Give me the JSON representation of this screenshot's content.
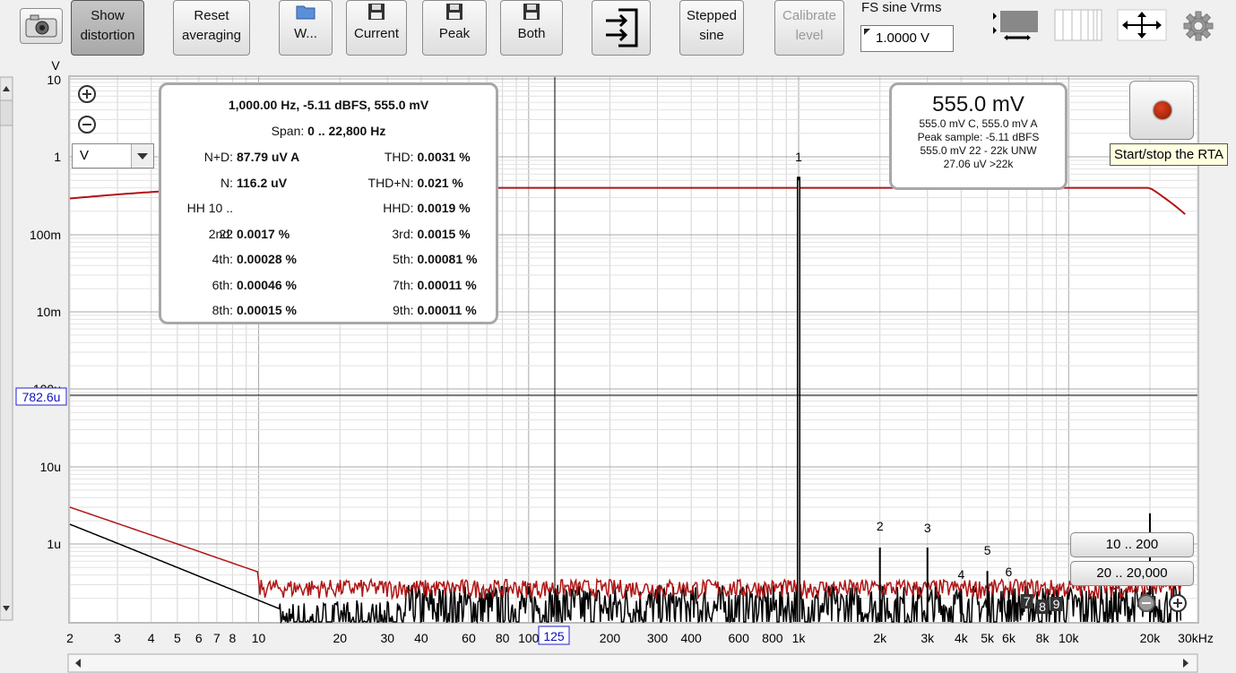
{
  "toolbar": {
    "show_distortion": [
      "Show",
      "distortion"
    ],
    "reset_averaging": [
      "Reset",
      "averaging"
    ],
    "w_label": "W...",
    "current_label": "Current",
    "peak_label": "Peak",
    "both_label": "Both",
    "stepped_sine": [
      "Stepped",
      "sine"
    ],
    "calibrate_level": [
      "Calibrate",
      "level"
    ],
    "fs_sine_label": "FS sine Vrms",
    "fs_sine_value": "1.0000 V"
  },
  "y_axis": {
    "unit_label": "V",
    "unit_select": "V",
    "ticks": [
      "10",
      "1",
      "100m",
      "10m",
      "100u",
      "10u",
      "1u"
    ],
    "cursor_value": "782.6u"
  },
  "x_axis": {
    "ticks": [
      "2",
      "3",
      "4",
      "5",
      "6",
      "7",
      "8",
      "10",
      "20",
      "30",
      "40",
      "60",
      "80",
      "100",
      "125",
      "200",
      "300",
      "400",
      "600",
      "800",
      "1k",
      "2k",
      "3k",
      "4k",
      "5k",
      "6k",
      "8k",
      "10k",
      "20k",
      "30kHz"
    ]
  },
  "harmonic_labels": [
    "1",
    "2",
    "3",
    "4",
    "5",
    "6",
    "7",
    "8",
    "9"
  ],
  "readout": {
    "header": "1,000.00 Hz, -5.11 dBFS, 555.0 mV",
    "span_label": "Span:",
    "span_value": "0 .. 22,800 Hz",
    "rows": [
      {
        "k1": "N+D:",
        "v1": "87.79 uV A",
        "k2": "THD:",
        "v2": "0.0031 %"
      },
      {
        "k1": "N:",
        "v1": "116.2 uV",
        "k2": "THD+N:",
        "v2": "0.021 %"
      },
      {
        "k1": "HH 10 .. 22",
        "v1": "",
        "k2": "HHD:",
        "v2": "0.0019 %"
      },
      {
        "k1": "2nd:",
        "v1": "0.0017 %",
        "k2": "3rd:",
        "v2": "0.0015 %"
      },
      {
        "k1": "4th:",
        "v1": "0.00028 %",
        "k2": "5th:",
        "v2": "0.00081 %"
      },
      {
        "k1": "6th:",
        "v1": "0.00046 %",
        "k2": "7th:",
        "v2": "0.00011 %"
      },
      {
        "k1": "8th:",
        "v1": "0.00015 %",
        "k2": "9th:",
        "v2": "0.00011 %"
      }
    ]
  },
  "level_panel": {
    "big": "555.0 mV",
    "lines": [
      "555.0 mV C, 555.0 mV A",
      "Peak sample: -5.11 dBFS",
      "555.0 mV 22 - 22k UNW",
      "27.06 uV >22k"
    ]
  },
  "range_buttons": [
    "10 .. 200",
    "20 .. 20,000"
  ],
  "tooltip": "Start/stop the RTA",
  "colors": {
    "red_trace": "#b01515",
    "black_trace": "#000000",
    "grid": "#c8c8c8"
  }
}
